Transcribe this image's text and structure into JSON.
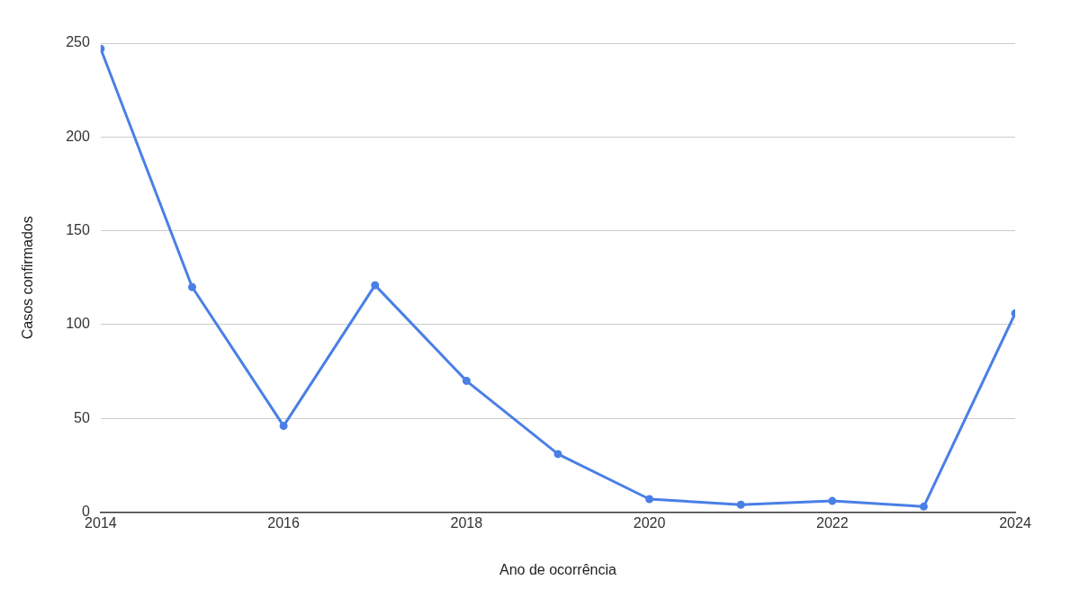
{
  "chart_data": {
    "type": "line",
    "xlabel": "Ano de ocorrência",
    "ylabel": "Casos confirmados",
    "x": [
      2014,
      2015,
      2016,
      2017,
      2018,
      2019,
      2020,
      2021,
      2022,
      2023,
      2024
    ],
    "series": [
      {
        "color": "#4a7fe6",
        "values": [
          247,
          120,
          46,
          121,
          70,
          31,
          7,
          4,
          6,
          3,
          106
        ]
      }
    ],
    "xlim": [
      2014,
      2024
    ],
    "xticks": [
      2014,
      2016,
      2018,
      2020,
      2022,
      2024
    ],
    "ylim": [
      0,
      250
    ],
    "yticks": [
      0,
      50,
      100,
      150,
      200,
      250
    ],
    "grid": "y",
    "legend": false,
    "marker": "circle",
    "line_style": "solid"
  }
}
